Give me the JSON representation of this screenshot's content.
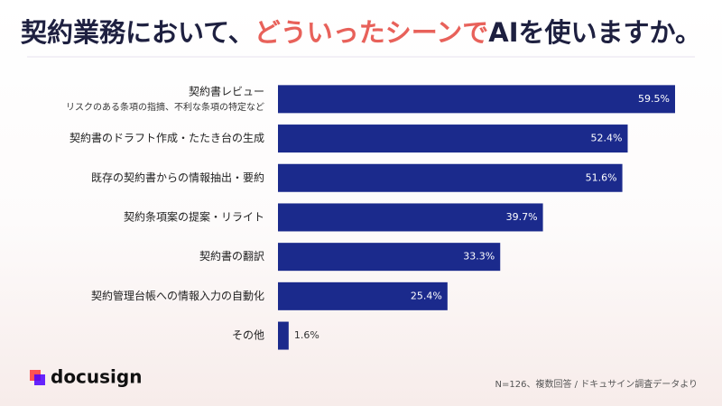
{
  "chart_data": {
    "type": "bar",
    "orientation": "horizontal",
    "title": [
      "契約業務において、",
      "どういったシーンで",
      "AIを使いますか。"
    ],
    "title_color": "#1e2040",
    "title_highlight_color": "#e8615a",
    "categories": [
      "契約書レビュー",
      "契約書のドラフト作成・たたき台の生成",
      "既存の契約書からの情報抽出・要約",
      "契約条項案の提案・リライト",
      "契約書の翻訳",
      "契約管理台帳への情報入力の自動化",
      "その他"
    ],
    "category_details": [
      "リスクのある条項の指摘、不利な条項の特定など",
      null,
      null,
      null,
      null,
      null,
      null
    ],
    "values": [
      59.5,
      52.4,
      51.6,
      39.7,
      33.3,
      25.4,
      1.6
    ],
    "value_labels": [
      "59.5%",
      "52.4%",
      "51.6%",
      "39.7%",
      "33.3%",
      "25.4%",
      "1.6%"
    ],
    "color": "#1b2a8c",
    "note": "N=126、複数回答 / ドキュサイン調査データより",
    "brand": "docusign"
  }
}
